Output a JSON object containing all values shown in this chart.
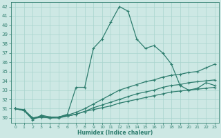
{
  "title": "",
  "xlabel": "Humidex (Indice chaleur)",
  "xlim": [
    -0.5,
    23.5
  ],
  "ylim": [
    29.5,
    42.5
  ],
  "yticks": [
    30,
    31,
    32,
    33,
    34,
    35,
    36,
    37,
    38,
    39,
    40,
    41,
    42
  ],
  "xticks": [
    0,
    1,
    2,
    3,
    4,
    5,
    6,
    7,
    8,
    9,
    10,
    11,
    12,
    13,
    14,
    15,
    16,
    17,
    18,
    19,
    20,
    21,
    22,
    23
  ],
  "bg_color": "#cde8e4",
  "grid_color": "#a8d4ce",
  "line_color": "#2e7d6e",
  "line1_y": [
    31.0,
    30.8,
    29.8,
    30.3,
    30.1,
    30.1,
    30.4,
    33.3,
    33.3,
    37.5,
    38.5,
    40.3,
    42.0,
    41.5,
    38.5,
    37.5,
    37.8,
    37.0,
    35.8,
    33.5,
    33.0,
    33.2,
    33.8,
    33.5
  ],
  "line2_y": [
    31.0,
    30.9,
    30.0,
    30.2,
    30.1,
    30.1,
    30.3,
    30.6,
    31.0,
    31.5,
    32.0,
    32.5,
    33.0,
    33.3,
    33.6,
    33.9,
    34.1,
    34.4,
    34.6,
    34.7,
    34.9,
    35.0,
    35.4,
    35.8
  ],
  "line3_y": [
    31.0,
    30.8,
    29.9,
    30.1,
    30.0,
    30.0,
    30.2,
    30.4,
    30.7,
    31.1,
    31.4,
    31.7,
    32.0,
    32.3,
    32.6,
    32.8,
    33.0,
    33.3,
    33.5,
    33.6,
    33.8,
    33.9,
    34.0,
    34.1
  ],
  "line4_y": [
    31.0,
    30.8,
    30.0,
    30.1,
    30.0,
    30.1,
    30.2,
    30.4,
    30.7,
    30.9,
    31.1,
    31.3,
    31.6,
    31.8,
    32.0,
    32.2,
    32.4,
    32.6,
    32.8,
    32.9,
    33.0,
    33.1,
    33.2,
    33.3
  ]
}
